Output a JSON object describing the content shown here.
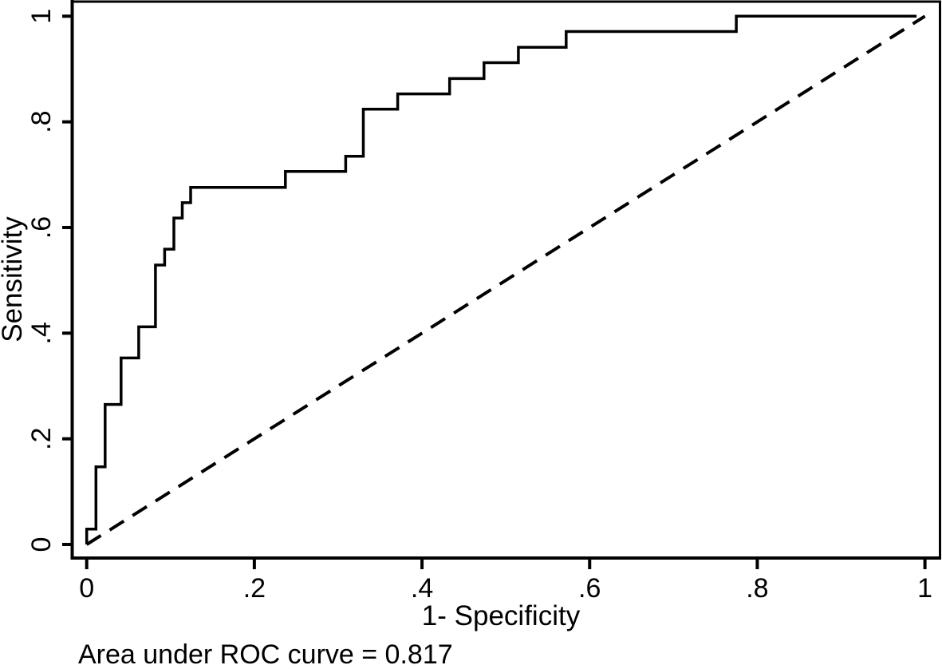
{
  "caption": "Area under ROC curve = 0.817",
  "colors": {
    "ink": "#000000",
    "background": "#ffffff"
  },
  "chart_data": {
    "type": "line",
    "subtype": "roc-step-plot",
    "title": "",
    "xlabel": "1- Specificity",
    "ylabel": "Sensitivity",
    "xlim": [
      0,
      1
    ],
    "ylim": [
      0,
      1
    ],
    "grid": false,
    "legend": "none",
    "annotation": "Area under ROC curve = 0.817",
    "auc": 0.817,
    "x_ticks": {
      "values": [
        0,
        0.2,
        0.4,
        0.6,
        0.8,
        1
      ],
      "labels": [
        "0",
        ".2",
        ".4",
        ".6",
        ".8",
        "1"
      ]
    },
    "y_ticks": {
      "values": [
        0,
        0.2,
        0.4,
        0.6,
        0.8,
        1
      ],
      "labels": [
        "0",
        ".2",
        ".4",
        ".6",
        ".8",
        "1"
      ]
    },
    "series": [
      {
        "name": "ROC curve",
        "style": "solid",
        "points": [
          [
            0,
            0
          ],
          [
            0,
            0.029
          ],
          [
            0.011,
            0.029
          ],
          [
            0.011,
            0.147
          ],
          [
            0.022,
            0.147
          ],
          [
            0.022,
            0.265
          ],
          [
            0.041,
            0.265
          ],
          [
            0.041,
            0.353
          ],
          [
            0.062,
            0.353
          ],
          [
            0.062,
            0.412
          ],
          [
            0.082,
            0.412
          ],
          [
            0.082,
            0.529
          ],
          [
            0.093,
            0.529
          ],
          [
            0.093,
            0.559
          ],
          [
            0.104,
            0.559
          ],
          [
            0.104,
            0.618
          ],
          [
            0.114,
            0.618
          ],
          [
            0.114,
            0.647
          ],
          [
            0.124,
            0.647
          ],
          [
            0.124,
            0.676
          ],
          [
            0.237,
            0.676
          ],
          [
            0.237,
            0.706
          ],
          [
            0.309,
            0.706
          ],
          [
            0.309,
            0.735
          ],
          [
            0.33,
            0.735
          ],
          [
            0.33,
            0.824
          ],
          [
            0.371,
            0.824
          ],
          [
            0.371,
            0.853
          ],
          [
            0.433,
            0.853
          ],
          [
            0.433,
            0.882
          ],
          [
            0.474,
            0.882
          ],
          [
            0.474,
            0.912
          ],
          [
            0.515,
            0.912
          ],
          [
            0.515,
            0.941
          ],
          [
            0.572,
            0.941
          ],
          [
            0.572,
            0.971
          ],
          [
            0.775,
            0.971
          ],
          [
            0.775,
            1.0
          ],
          [
            0.99,
            1.0
          ]
        ]
      },
      {
        "name": "Reference diagonal",
        "style": "dashed",
        "points": [
          [
            0,
            0
          ],
          [
            1,
            1
          ]
        ]
      }
    ]
  }
}
